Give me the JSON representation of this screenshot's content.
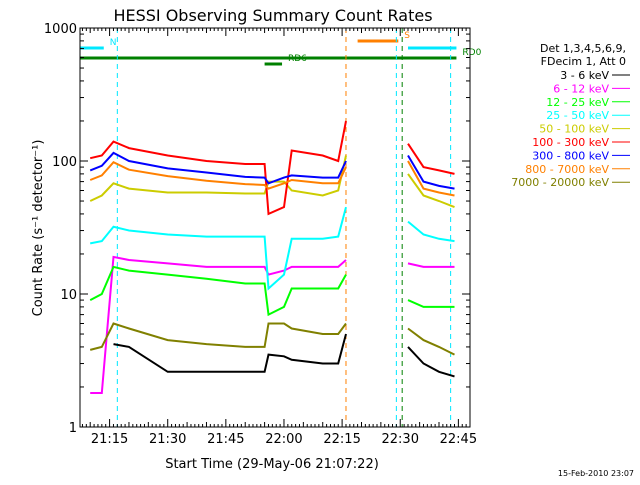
{
  "chart_data": {
    "type": "line",
    "title": "HESSI Observing Summary Count Rates",
    "xlabel": "Start Time (29-May-06 21:07:22)",
    "ylabel": "Count Rate (s⁻¹ detector⁻¹)",
    "y_scale": "log",
    "ylim": [
      1,
      1000
    ],
    "xlim": [
      "21:07:22",
      "22:48:00"
    ],
    "x_ticks": [
      "21:15",
      "21:30",
      "21:45",
      "22:00",
      "22:15",
      "22:30",
      "22:45"
    ],
    "y_ticks": [
      "1",
      "10",
      "100",
      "1000"
    ],
    "footer_timestamp": "15-Feb-2010 23:07",
    "legend": {
      "header": [
        "Det 1,3,4,5,6,9,",
        "FDecim 1, Att 0"
      ],
      "position": "right"
    },
    "flags": [
      {
        "label": "N",
        "color": "#00e8ff",
        "segments": [
          [
            "21:07:22",
            "21:13:30"
          ],
          [
            "22:32:00",
            "22:44:30"
          ]
        ]
      },
      {
        "label": "S",
        "color": "#ff8000",
        "segments": [
          [
            "22:19:00",
            "22:29:30"
          ]
        ]
      },
      {
        "label": "RD0",
        "color": "#008000",
        "segments": [
          [
            "21:07:22",
            "22:44:30"
          ]
        ]
      },
      {
        "label": "RD6",
        "color": "#008000",
        "segments": [
          [
            "21:55:00",
            "21:59:30"
          ]
        ]
      }
    ],
    "vertical_markers": [
      {
        "time": "21:17:00",
        "color": "#00e8ff"
      },
      {
        "time": "22:29:00",
        "color": "#00e8ff"
      },
      {
        "time": "22:43:00",
        "color": "#00e8ff"
      },
      {
        "time": "22:16:00",
        "color": "#ff8000"
      },
      {
        "time": "22:30:30",
        "color": "#008000"
      }
    ],
    "x": [
      "21:10",
      "21:13",
      "21:16",
      "21:20",
      "21:30",
      "21:40",
      "21:50",
      "21:55",
      "21:56",
      "22:00",
      "22:02",
      "22:10",
      "22:14",
      "22:16",
      "22:17",
      "22:32",
      "22:36",
      "22:40",
      "22:44"
    ],
    "series": [
      {
        "name": "3 - 6 keV",
        "color": "#000000",
        "values": [
          null,
          null,
          4.2,
          4.0,
          2.6,
          2.6,
          2.6,
          2.6,
          3.5,
          3.4,
          3.2,
          3.0,
          3.0,
          5.0,
          null,
          4.0,
          3.0,
          2.6,
          2.4
        ]
      },
      {
        "name": "6 - 12 keV",
        "color": "#ff00ff",
        "values": [
          1.8,
          1.8,
          19,
          18,
          17,
          16,
          16,
          16,
          14,
          15,
          16,
          16,
          16,
          18,
          null,
          17,
          16,
          16,
          16
        ]
      },
      {
        "name": "12 - 25 keV",
        "color": "#00ff00",
        "values": [
          9,
          10,
          16,
          15,
          14,
          13,
          12,
          12,
          7,
          8,
          11,
          11,
          11,
          14,
          null,
          9,
          8,
          8,
          8
        ]
      },
      {
        "name": "25 - 50 keV",
        "color": "#00ffff",
        "values": [
          24,
          25,
          32,
          30,
          28,
          27,
          27,
          27,
          11,
          14,
          26,
          26,
          27,
          45,
          null,
          35,
          28,
          26,
          25
        ]
      },
      {
        "name": "50 - 100 keV",
        "color": "#cccc00",
        "values": [
          50,
          55,
          68,
          62,
          58,
          58,
          57,
          57,
          70,
          70,
          60,
          55,
          60,
          110,
          null,
          80,
          55,
          50,
          45
        ]
      },
      {
        "name": "100 - 300 keV",
        "color": "#ff0000",
        "values": [
          105,
          110,
          140,
          125,
          110,
          100,
          95,
          95,
          40,
          45,
          120,
          110,
          100,
          200,
          null,
          135,
          90,
          85,
          80
        ]
      },
      {
        "name": "300 - 800 keV",
        "color": "#0000ff",
        "values": [
          85,
          92,
          115,
          100,
          88,
          82,
          76,
          75,
          68,
          75,
          78,
          75,
          75,
          100,
          null,
          110,
          70,
          65,
          62
        ]
      },
      {
        "name": "800 - 7000 keV",
        "color": "#ff8000",
        "values": [
          72,
          78,
          98,
          86,
          77,
          71,
          67,
          66,
          62,
          68,
          72,
          68,
          68,
          90,
          null,
          100,
          62,
          58,
          55
        ]
      },
      {
        "name": "7000 - 20000 keV",
        "color": "#808000",
        "values": [
          3.8,
          4.0,
          6.0,
          5.5,
          4.5,
          4.2,
          4.0,
          4.0,
          6.0,
          6.0,
          5.5,
          5.0,
          5.0,
          6.0,
          null,
          5.5,
          4.5,
          4.0,
          3.5
        ]
      }
    ]
  }
}
